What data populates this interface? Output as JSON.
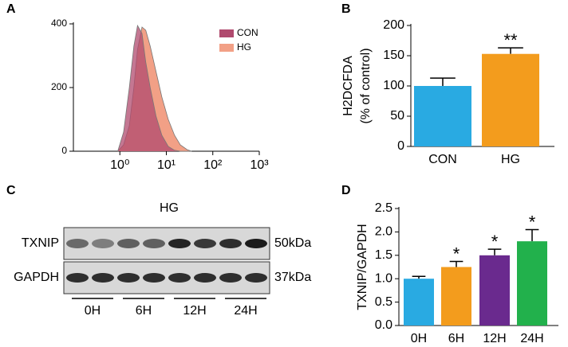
{
  "chart_data": [
    {
      "type": "area",
      "panel": "A",
      "xscale": "log",
      "x": [
        0.9,
        1.2,
        1.6,
        2,
        2.4,
        3,
        3.6,
        4.5,
        6,
        8,
        11,
        15,
        20,
        28,
        35
      ],
      "series": [
        {
          "name": "HG",
          "color": "#f2a086",
          "values": [
            0,
            20,
            80,
            200,
            320,
            390,
            380,
            330,
            250,
            170,
            100,
            50,
            20,
            5,
            0
          ]
        },
        {
          "name": "CON",
          "color": "#b04a6e",
          "values": [
            0,
            60,
            200,
            330,
            395,
            370,
            280,
            200,
            110,
            50,
            15,
            3,
            0,
            0,
            0
          ]
        }
      ],
      "xlim": [
        0.1,
        1000
      ],
      "xticks": [
        {
          "value": 1,
          "label": "10⁰"
        },
        {
          "value": 10,
          "label": "10¹"
        },
        {
          "value": 100,
          "label": "10²"
        },
        {
          "value": 1000,
          "label": "10³"
        }
      ],
      "ylim": [
        0,
        400
      ],
      "yticks": [
        0,
        200,
        400
      ],
      "legend": "top-right"
    },
    {
      "type": "bar",
      "panel": "B",
      "categories": [
        "CON",
        "HG"
      ],
      "values": [
        100,
        153
      ],
      "errors": [
        13,
        10
      ],
      "colors": [
        "#29aae2",
        "#f39c1d"
      ],
      "stars": [
        null,
        "**"
      ],
      "ylabel": [
        "H2DCFDA",
        "(% of control)"
      ],
      "ylim": [
        0,
        200
      ],
      "yticks": [
        0,
        50,
        100,
        150,
        200
      ]
    },
    {
      "type": "bar",
      "panel": "D",
      "categories": [
        "0H",
        "6H",
        "12H",
        "24H"
      ],
      "values": [
        1.0,
        1.25,
        1.5,
        1.8
      ],
      "errors": [
        0.05,
        0.12,
        0.13,
        0.25
      ],
      "colors": [
        "#29aae2",
        "#f39c1d",
        "#6a2a8e",
        "#22b14c"
      ],
      "stars": [
        null,
        "*",
        "*",
        "*"
      ],
      "ylabel": [
        "TXNIP/GAPDH"
      ],
      "ylim": [
        0,
        2.5
      ],
      "yticks": [
        {
          "value": 0,
          "label": "0.0"
        },
        0.5,
        {
          "value": 1,
          "label": "1.0"
        },
        1.5,
        {
          "value": 2,
          "label": "2.0"
        },
        2.5
      ]
    }
  ],
  "blot": {
    "panel": "C",
    "condition": "HG",
    "rows": [
      {
        "protein": "TXNIP",
        "size": "50kDa"
      },
      {
        "protein": "GAPDH",
        "size": "37kDa"
      }
    ],
    "groups": [
      "0H",
      "6H",
      "12H",
      "24H"
    ]
  }
}
